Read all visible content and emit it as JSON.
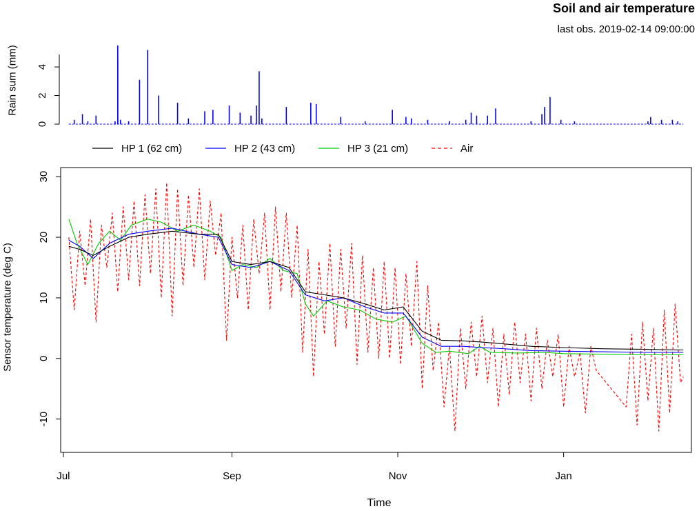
{
  "header": {
    "title": "Soil and air temperature",
    "subtitle": "last obs.  2019-02-14 09:00:00"
  },
  "legend": {
    "items": [
      {
        "label": "HP 1 (62 cm)",
        "color": "#000000",
        "dash": "solid"
      },
      {
        "label": "HP 2 (43 cm)",
        "color": "#0000ff",
        "dash": "solid"
      },
      {
        "label": "HP 3 (21 cm)",
        "color": "#00cc00",
        "dash": "solid"
      },
      {
        "label": "Air",
        "color": "#ff0000",
        "dash": "dashed"
      }
    ]
  },
  "chart_data": [
    {
      "type": "bar",
      "ylabel": "Rain sum (mm)",
      "ylim": [
        0,
        5.5
      ],
      "yticks": [
        "0",
        "2",
        "4"
      ],
      "ytick_values": [
        0,
        2,
        4
      ],
      "color": "#0000ff",
      "bars": [
        {
          "x": "2018-07-05",
          "v": 0.3
        },
        {
          "x": "2018-07-08",
          "v": 0.7
        },
        {
          "x": "2018-07-10",
          "v": 0.2
        },
        {
          "x": "2018-07-13",
          "v": 0.6
        },
        {
          "x": "2018-07-20",
          "v": 0.2
        },
        {
          "x": "2018-07-21",
          "v": 4.5
        },
        {
          "x": "2018-07-21",
          "v": 5.5
        },
        {
          "x": "2018-07-22",
          "v": 0.3
        },
        {
          "x": "2018-07-25",
          "v": 0.2
        },
        {
          "x": "2018-07-29",
          "v": 3.1
        },
        {
          "x": "2018-08-01",
          "v": 5.2
        },
        {
          "x": "2018-08-05",
          "v": 2.0
        },
        {
          "x": "2018-08-12",
          "v": 1.5
        },
        {
          "x": "2018-08-16",
          "v": 0.4
        },
        {
          "x": "2018-08-22",
          "v": 0.9
        },
        {
          "x": "2018-08-25",
          "v": 1.0
        },
        {
          "x": "2018-08-31",
          "v": 1.3
        },
        {
          "x": "2018-09-04",
          "v": 0.8
        },
        {
          "x": "2018-09-08",
          "v": 0.6
        },
        {
          "x": "2018-09-10",
          "v": 1.3
        },
        {
          "x": "2018-09-11",
          "v": 3.7
        },
        {
          "x": "2018-09-12",
          "v": 0.4
        },
        {
          "x": "2018-09-21",
          "v": 1.2
        },
        {
          "x": "2018-09-30",
          "v": 1.5
        },
        {
          "x": "2018-10-02",
          "v": 1.4
        },
        {
          "x": "2018-10-11",
          "v": 0.5
        },
        {
          "x": "2018-10-20",
          "v": 0.2
        },
        {
          "x": "2018-10-30",
          "v": 1.0
        },
        {
          "x": "2018-11-04",
          "v": 0.5
        },
        {
          "x": "2018-11-06",
          "v": 0.4
        },
        {
          "x": "2018-11-12",
          "v": 0.3
        },
        {
          "x": "2018-11-20",
          "v": 0.2
        },
        {
          "x": "2018-11-26",
          "v": 0.3
        },
        {
          "x": "2018-11-28",
          "v": 0.8
        },
        {
          "x": "2018-11-30",
          "v": 0.6
        },
        {
          "x": "2018-12-04",
          "v": 0.6
        },
        {
          "x": "2018-12-07",
          "v": 1.1
        },
        {
          "x": "2018-12-20",
          "v": 0.2
        },
        {
          "x": "2018-12-24",
          "v": 0.7
        },
        {
          "x": "2018-12-25",
          "v": 1.2
        },
        {
          "x": "2018-12-27",
          "v": 1.9
        },
        {
          "x": "2018-12-31",
          "v": 0.3
        },
        {
          "x": "2019-01-05",
          "v": 0.2
        },
        {
          "x": "2019-02-01",
          "v": 0.2
        },
        {
          "x": "2019-02-02",
          "v": 0.5
        },
        {
          "x": "2019-02-06",
          "v": 0.3
        },
        {
          "x": "2019-02-10",
          "v": 0.3
        },
        {
          "x": "2019-02-12",
          "v": 0.2
        }
      ]
    },
    {
      "type": "line",
      "xlabel": "Time",
      "ylabel": "Sensor temperature (deg C)",
      "xlim": [
        "2018-06-30",
        "2019-02-17"
      ],
      "ylim": [
        -15,
        30
      ],
      "xticks": [
        {
          "label": "Jul",
          "date": "2018-07-01"
        },
        {
          "label": "Sep",
          "date": "2018-09-01"
        },
        {
          "label": "Nov",
          "date": "2018-11-01"
        },
        {
          "label": "Jan",
          "date": "2019-01-01"
        }
      ],
      "yticks": [
        {
          "label": "-10",
          "value": -10
        },
        {
          "label": "0",
          "value": 0
        },
        {
          "label": "10",
          "value": 10
        },
        {
          "label": "20",
          "value": 20
        },
        {
          "label": "30",
          "value": 30
        }
      ],
      "series": [
        {
          "name": "HP 1 (62 cm)",
          "color": "#000000",
          "x": [
            "2018-07-03",
            "2018-07-07",
            "2018-07-12",
            "2018-07-18",
            "2018-07-25",
            "2018-08-01",
            "2018-08-10",
            "2018-08-20",
            "2018-08-27",
            "2018-09-01",
            "2018-09-08",
            "2018-09-15",
            "2018-09-22",
            "2018-09-28",
            "2018-10-05",
            "2018-10-12",
            "2018-10-20",
            "2018-10-27",
            "2018-11-03",
            "2018-11-10",
            "2018-11-17",
            "2018-11-25",
            "2018-12-02",
            "2018-12-10",
            "2018-12-20",
            "2019-01-01",
            "2019-01-15",
            "2019-01-31",
            "2019-02-14"
          ],
          "y": [
            18.5,
            18.0,
            17.0,
            18.5,
            20.0,
            20.5,
            21.0,
            20.5,
            20.5,
            16.0,
            15.5,
            16.0,
            15.0,
            11.0,
            10.5,
            10.0,
            9.0,
            8.0,
            8.5,
            4.5,
            3.0,
            2.9,
            2.7,
            2.4,
            2.0,
            1.8,
            1.6,
            1.5,
            1.4
          ]
        },
        {
          "name": "HP 2 (43 cm)",
          "color": "#0000ff",
          "x": [
            "2018-07-03",
            "2018-07-07",
            "2018-07-12",
            "2018-07-18",
            "2018-07-25",
            "2018-08-01",
            "2018-08-10",
            "2018-08-20",
            "2018-08-27",
            "2018-09-01",
            "2018-09-08",
            "2018-09-15",
            "2018-09-22",
            "2018-09-28",
            "2018-10-05",
            "2018-10-12",
            "2018-10-20",
            "2018-10-27",
            "2018-11-03",
            "2018-11-10",
            "2018-11-17",
            "2018-11-25",
            "2018-12-02",
            "2018-12-10",
            "2018-12-20",
            "2019-01-01",
            "2019-01-15",
            "2019-01-31",
            "2019-02-14"
          ],
          "y": [
            19.5,
            18.5,
            16.5,
            19.0,
            20.5,
            21.0,
            21.5,
            20.5,
            20.0,
            15.5,
            15.0,
            16.0,
            14.5,
            10.5,
            9.5,
            10.0,
            8.5,
            7.5,
            7.5,
            3.5,
            2.0,
            2.0,
            1.8,
            1.6,
            1.3,
            1.2,
            1.1,
            1.0,
            1.0
          ]
        },
        {
          "name": "HP 3 (21 cm)",
          "color": "#00cc00",
          "x": [
            "2018-07-03",
            "2018-07-06",
            "2018-07-10",
            "2018-07-14",
            "2018-07-18",
            "2018-07-22",
            "2018-07-26",
            "2018-08-01",
            "2018-08-06",
            "2018-08-12",
            "2018-08-18",
            "2018-08-24",
            "2018-08-28",
            "2018-09-01",
            "2018-09-05",
            "2018-09-10",
            "2018-09-15",
            "2018-09-20",
            "2018-09-25",
            "2018-09-28",
            "2018-10-01",
            "2018-10-06",
            "2018-10-12",
            "2018-10-18",
            "2018-10-24",
            "2018-10-30",
            "2018-11-04",
            "2018-11-10",
            "2018-11-15",
            "2018-11-20",
            "2018-11-27",
            "2018-12-01",
            "2018-12-05",
            "2018-12-15",
            "2018-12-25",
            "2019-01-01",
            "2019-01-15",
            "2019-01-31",
            "2019-02-14"
          ],
          "y": [
            23.0,
            19.0,
            15.5,
            19.0,
            21.0,
            19.5,
            22.0,
            23.0,
            22.5,
            21.0,
            22.0,
            21.0,
            20.0,
            14.5,
            15.5,
            15.0,
            16.5,
            14.5,
            14.0,
            9.0,
            7.0,
            9.5,
            8.5,
            8.0,
            6.5,
            6.0,
            7.0,
            2.5,
            1.0,
            1.2,
            0.8,
            2.0,
            1.0,
            0.9,
            1.0,
            0.8,
            0.7,
            0.6,
            0.6
          ]
        },
        {
          "name": "Air",
          "color": "#ff0000",
          "x": [
            "2018-07-03",
            "2018-07-05",
            "2018-07-07",
            "2018-07-09",
            "2018-07-11",
            "2018-07-13",
            "2018-07-15",
            "2018-07-17",
            "2018-07-19",
            "2018-07-21",
            "2018-07-23",
            "2018-07-25",
            "2018-07-27",
            "2018-07-29",
            "2018-07-31",
            "2018-08-02",
            "2018-08-04",
            "2018-08-06",
            "2018-08-08",
            "2018-08-10",
            "2018-08-12",
            "2018-08-14",
            "2018-08-16",
            "2018-08-18",
            "2018-08-20",
            "2018-08-22",
            "2018-08-24",
            "2018-08-26",
            "2018-08-28",
            "2018-08-30",
            "2018-09-01",
            "2018-09-03",
            "2018-09-05",
            "2018-09-07",
            "2018-09-09",
            "2018-09-11",
            "2018-09-13",
            "2018-09-15",
            "2018-09-17",
            "2018-09-19",
            "2018-09-21",
            "2018-09-23",
            "2018-09-25",
            "2018-09-27",
            "2018-09-29",
            "2018-10-01",
            "2018-10-03",
            "2018-10-05",
            "2018-10-07",
            "2018-10-09",
            "2018-10-11",
            "2018-10-13",
            "2018-10-15",
            "2018-10-17",
            "2018-10-19",
            "2018-10-21",
            "2018-10-23",
            "2018-10-25",
            "2018-10-27",
            "2018-10-29",
            "2018-10-31",
            "2018-11-02",
            "2018-11-04",
            "2018-11-06",
            "2018-11-08",
            "2018-11-10",
            "2018-11-12",
            "2018-11-14",
            "2018-11-16",
            "2018-11-18",
            "2018-11-20",
            "2018-11-22",
            "2018-11-24",
            "2018-11-26",
            "2018-11-28",
            "2018-11-30",
            "2018-12-02",
            "2018-12-04",
            "2018-12-06",
            "2018-12-08",
            "2018-12-10",
            "2018-12-12",
            "2018-12-14",
            "2018-12-16",
            "2018-12-18",
            "2018-12-20",
            "2018-12-22",
            "2018-12-24",
            "2018-12-26",
            "2018-12-28",
            "2018-12-30",
            "2019-01-01",
            "2019-01-03",
            "2019-01-05",
            "2019-01-07",
            "2019-01-09",
            "2019-01-11",
            "2019-01-13",
            "2019-01-24",
            "2019-01-26",
            "2019-01-28",
            "2019-01-30",
            "2019-02-01",
            "2019-02-03",
            "2019-02-05",
            "2019-02-07",
            "2019-02-09",
            "2019-02-11",
            "2019-02-13",
            "2019-02-14"
          ],
          "y": [
            20,
            8,
            21,
            12,
            23,
            6,
            22,
            15,
            24,
            11,
            25,
            13,
            26,
            12,
            27,
            14,
            28,
            10,
            29,
            7,
            28,
            12,
            27,
            15,
            28,
            13,
            26,
            17,
            24,
            3,
            20,
            10,
            22,
            8,
            23,
            14,
            24,
            8,
            25,
            11,
            24,
            10,
            22,
            1,
            18,
            -3,
            16,
            4,
            19,
            2,
            18,
            5,
            19,
            -1,
            17,
            1,
            15,
            0,
            16,
            0,
            15,
            -1,
            14,
            2,
            16,
            -5,
            12,
            -2,
            6,
            -8,
            2,
            -12,
            5,
            -5,
            6,
            -3,
            7,
            -4,
            5,
            -8,
            4,
            -6,
            6,
            -4,
            4,
            -7,
            5,
            -5,
            3,
            -3,
            4,
            -8,
            2,
            -3,
            1,
            -9,
            2,
            -2,
            -8,
            4,
            -11,
            6,
            -7,
            5,
            -12,
            8,
            -9,
            9,
            -4,
            -3
          ]
        }
      ]
    }
  ]
}
